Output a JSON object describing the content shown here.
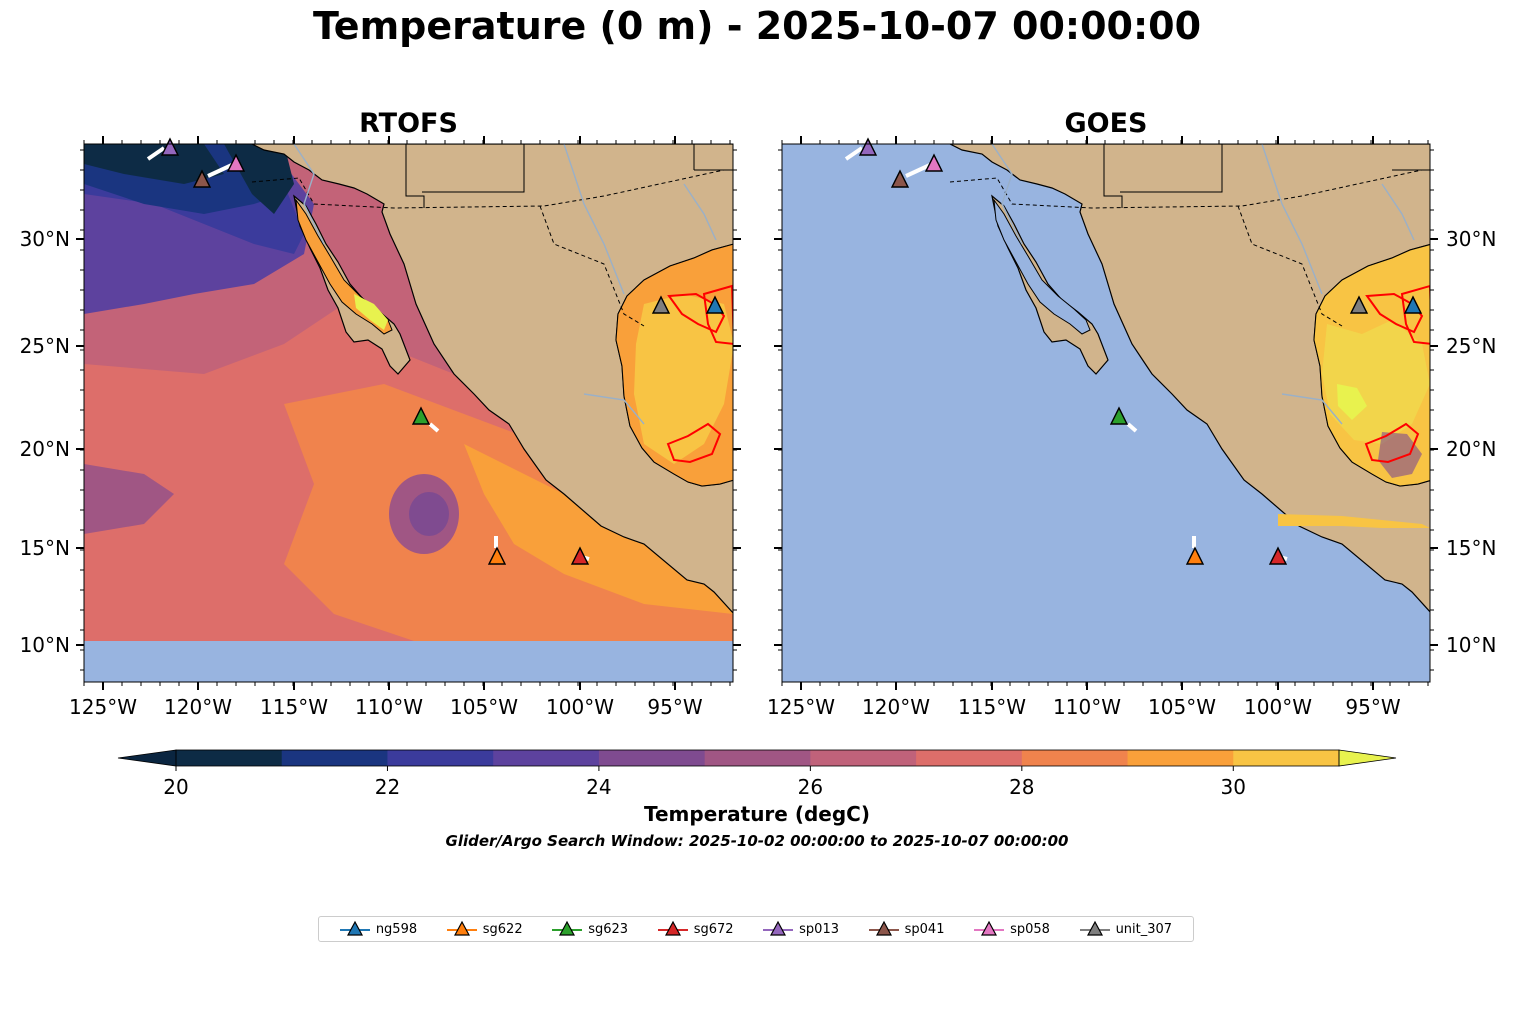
{
  "title": "Temperature (0 m) - 2025-10-07 00:00:00",
  "panels": [
    {
      "title": "RTOFS"
    },
    {
      "title": "GOES"
    }
  ],
  "axes": {
    "lon_ticks": [
      "125°W",
      "120°W",
      "115°W",
      "110°W",
      "105°W",
      "100°W",
      "95°W"
    ],
    "lat_ticks": [
      "30°N",
      "25°N",
      "20°N",
      "15°N",
      "10°N"
    ]
  },
  "colorbar": {
    "label": "Temperature (degC)",
    "range": [
      20,
      31
    ],
    "ticks": [
      "20",
      "22",
      "24",
      "26",
      "28",
      "30"
    ],
    "colors": [
      "#0d2b45",
      "#1a3580",
      "#3b3b9c",
      "#5d429e",
      "#7f4b90",
      "#a05684",
      "#c0627a",
      "#dd6e6a",
      "#f0834d",
      "#f9a03a",
      "#f8c444"
    ],
    "extend_low_color": "#0a2540",
    "extend_high_color": "#e8f24e"
  },
  "search_window": "Glider/Argo Search Window: 2025-10-02 00:00:00 to 2025-10-07 00:00:00",
  "land_color": "#d1b48c",
  "ocean_color": "#98b4e0",
  "gliders": [
    {
      "name": "ng598",
      "color": "#1f77b4"
    },
    {
      "name": "sg622",
      "color": "#ff7f0e"
    },
    {
      "name": "sg623",
      "color": "#2ca02c"
    },
    {
      "name": "sg672",
      "color": "#d62728"
    },
    {
      "name": "sp013",
      "color": "#9467bd"
    },
    {
      "name": "sp041",
      "color": "#8c564b"
    },
    {
      "name": "sp058",
      "color": "#e377c2"
    },
    {
      "name": "unit_307",
      "color": "#7f7f7f"
    }
  ]
}
